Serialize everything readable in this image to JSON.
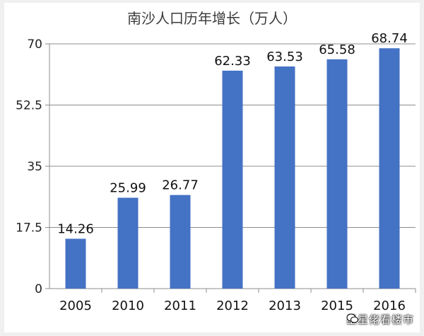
{
  "chart_data": {
    "type": "bar",
    "title": "南沙人口历年增长（万人）",
    "categories": [
      "2005",
      "2010",
      "2011",
      "2012",
      "2013",
      "2015",
      "2016"
    ],
    "values": [
      14.26,
      25.99,
      26.77,
      62.33,
      63.53,
      65.58,
      68.74
    ],
    "value_labels": [
      "14.26",
      "25.99",
      "26.77",
      "62.33",
      "63.53",
      "65.58",
      "68.74"
    ],
    "yticks": [
      "0",
      "17.5",
      "35",
      "52.5",
      "70"
    ],
    "ylim": [
      0,
      70
    ],
    "grid": true,
    "bar_color": "#4472c4",
    "xlabel": "",
    "ylabel": ""
  },
  "watermark": {
    "text": "星星佬看楼市",
    "icon": "wechat-icon"
  }
}
